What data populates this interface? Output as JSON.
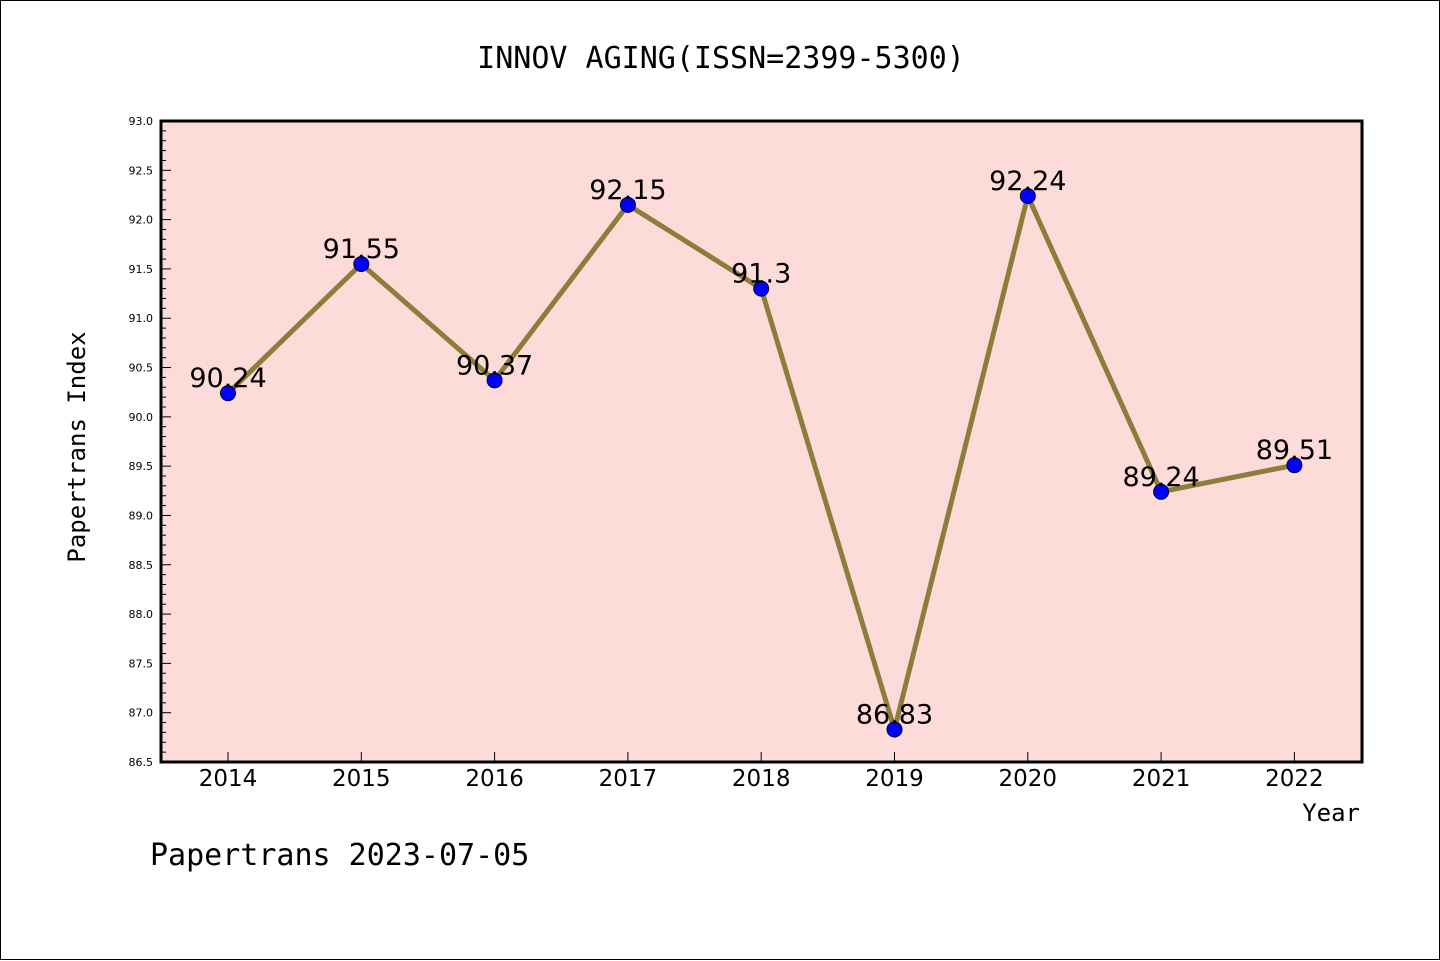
{
  "chart_data": {
    "type": "line",
    "title": "INNOV AGING(ISSN=2399-5300)",
    "xlabel": "Year",
    "ylabel": "Papertrans Index",
    "categories": [
      "2014",
      "2015",
      "2016",
      "2017",
      "2018",
      "2019",
      "2020",
      "2021",
      "2022"
    ],
    "values": [
      90.24,
      91.55,
      90.37,
      92.15,
      91.3,
      86.83,
      92.24,
      89.24,
      89.51
    ],
    "value_labels": [
      "90.24",
      "91.55",
      "90.37",
      "92.15",
      "91.3",
      "86.83",
      "92.24",
      "89.24",
      "89.51"
    ],
    "ylim": [
      86.5,
      93.0
    ],
    "yticks": [
      "86.5",
      "87.0",
      "87.5",
      "88.0",
      "88.5",
      "89.0",
      "89.5",
      "90.0",
      "90.5",
      "91.0",
      "91.5",
      "92.0",
      "92.5",
      "93.0"
    ],
    "grid": false,
    "legend": "none",
    "colors": {
      "plot_background": "#fddbd9",
      "line": "#8b7d3a",
      "marker": "#0000ff",
      "axis": "#000000"
    }
  },
  "footer": "Papertrans 2023-07-05"
}
